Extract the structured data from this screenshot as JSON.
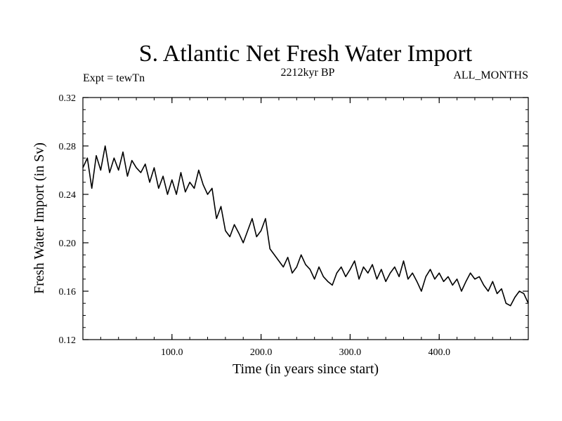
{
  "chart_data": {
    "type": "line",
    "title": "S. Atlantic Net Fresh Water Import",
    "subtitle_left": "Expt = tewTn",
    "subtitle_center": "2212kyr BP",
    "subtitle_right": "ALL_MONTHS",
    "xlabel": "Time (in years since start)",
    "ylabel": "Fresh Water Import (in Sv)",
    "xlim": [
      0,
      500
    ],
    "ylim": [
      0.12,
      0.32
    ],
    "xticks": [
      100,
      200,
      300,
      400
    ],
    "xtick_labels": [
      "100.0",
      "200.0",
      "300.0",
      "400.0"
    ],
    "yticks": [
      0.12,
      0.16,
      0.2,
      0.24,
      0.28,
      0.32
    ],
    "ytick_labels": [
      "0.12",
      "0.16",
      "0.20",
      "0.24",
      "0.28",
      "0.32"
    ],
    "grid": false,
    "color": "#000000",
    "series": [
      {
        "name": "Net Fresh Water Import",
        "x": [
          0,
          5,
          10,
          15,
          20,
          25,
          30,
          35,
          40,
          45,
          50,
          55,
          60,
          65,
          70,
          75,
          80,
          85,
          90,
          95,
          100,
          105,
          110,
          115,
          120,
          125,
          130,
          135,
          140,
          145,
          150,
          155,
          160,
          165,
          170,
          175,
          180,
          185,
          190,
          195,
          200,
          205,
          210,
          215,
          220,
          225,
          230,
          235,
          240,
          245,
          250,
          255,
          260,
          265,
          270,
          275,
          280,
          285,
          290,
          295,
          300,
          305,
          310,
          315,
          320,
          325,
          330,
          335,
          340,
          345,
          350,
          355,
          360,
          365,
          370,
          375,
          380,
          385,
          390,
          395,
          400,
          405,
          410,
          415,
          420,
          425,
          430,
          435,
          440,
          445,
          450,
          455,
          460,
          465,
          470,
          475,
          480,
          485,
          490,
          495,
          500
        ],
        "y": [
          0.262,
          0.27,
          0.245,
          0.272,
          0.26,
          0.28,
          0.258,
          0.27,
          0.26,
          0.275,
          0.255,
          0.268,
          0.262,
          0.258,
          0.265,
          0.25,
          0.262,
          0.245,
          0.255,
          0.24,
          0.252,
          0.24,
          0.258,
          0.242,
          0.25,
          0.245,
          0.26,
          0.248,
          0.24,
          0.245,
          0.22,
          0.23,
          0.21,
          0.205,
          0.215,
          0.208,
          0.2,
          0.21,
          0.22,
          0.205,
          0.21,
          0.22,
          0.195,
          0.19,
          0.185,
          0.18,
          0.188,
          0.175,
          0.18,
          0.19,
          0.182,
          0.178,
          0.17,
          0.18,
          0.172,
          0.168,
          0.165,
          0.175,
          0.18,
          0.172,
          0.178,
          0.185,
          0.17,
          0.18,
          0.175,
          0.182,
          0.17,
          0.178,
          0.168,
          0.175,
          0.18,
          0.172,
          0.185,
          0.17,
          0.175,
          0.168,
          0.16,
          0.172,
          0.178,
          0.17,
          0.175,
          0.168,
          0.172,
          0.165,
          0.17,
          0.16,
          0.168,
          0.175,
          0.17,
          0.172,
          0.165,
          0.16,
          0.168,
          0.158,
          0.162,
          0.15,
          0.148,
          0.155,
          0.16,
          0.158,
          0.15
        ]
      }
    ]
  }
}
